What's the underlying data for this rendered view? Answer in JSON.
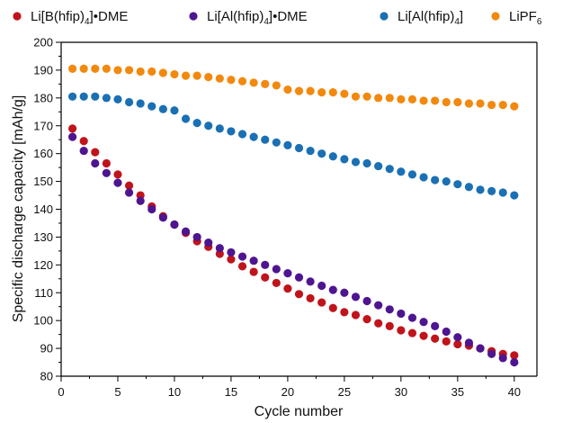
{
  "chart_data": {
    "type": "scatter",
    "title": "",
    "xlabel": "Cycle number",
    "ylabel": "Specific discharge capacity [mAh/g]",
    "xlim": [
      0,
      42
    ],
    "ylim": [
      80,
      200
    ],
    "xticks": [
      0,
      5,
      10,
      15,
      20,
      25,
      30,
      35,
      40
    ],
    "yticks": [
      80,
      90,
      100,
      110,
      120,
      130,
      140,
      150,
      160,
      170,
      180,
      190,
      200
    ],
    "grid": false,
    "legend_position": "top",
    "series": [
      {
        "name": "Li[B(hfip)4]•DME",
        "legend": {
          "pre": "Li[B(hfip)",
          "sub": "4",
          "post": "]•DME"
        },
        "color": "#c0141c",
        "x": [
          1,
          2,
          3,
          4,
          5,
          6,
          7,
          8,
          9,
          10,
          11,
          12,
          13,
          14,
          15,
          16,
          17,
          18,
          19,
          20,
          21,
          22,
          23,
          24,
          25,
          26,
          27,
          28,
          29,
          30,
          31,
          32,
          33,
          34,
          35,
          36,
          37,
          38,
          39,
          40
        ],
        "y": [
          169,
          164.5,
          160.5,
          156.5,
          152.5,
          148.5,
          145,
          141,
          137.5,
          134.5,
          131.5,
          128.5,
          126.5,
          124,
          122,
          119.5,
          117.5,
          115.5,
          113.5,
          111.5,
          109.5,
          108,
          106.5,
          104.5,
          103,
          102,
          100.5,
          99,
          98,
          96.5,
          95.5,
          94.5,
          93.5,
          92.5,
          91.5,
          91,
          90,
          89,
          88,
          87.5
        ]
      },
      {
        "name": "Li[Al(hfip)4]•DME",
        "legend": {
          "pre": "Li[Al(hfip)",
          "sub": "4",
          "post": "]•DME"
        },
        "color": "#4f1590",
        "x": [
          1,
          2,
          3,
          4,
          5,
          6,
          7,
          8,
          9,
          10,
          11,
          12,
          13,
          14,
          15,
          16,
          17,
          18,
          19,
          20,
          21,
          22,
          23,
          24,
          25,
          26,
          27,
          28,
          29,
          30,
          31,
          32,
          33,
          34,
          35,
          36,
          37,
          38,
          39,
          40
        ],
        "y": [
          166,
          161,
          156.5,
          153,
          149.5,
          146,
          143,
          140,
          137,
          134.5,
          132,
          130,
          128,
          126,
          124.5,
          123,
          121.5,
          120,
          118.5,
          117,
          115.5,
          114,
          112.5,
          111,
          110,
          108.5,
          107,
          105.5,
          104,
          102.5,
          101,
          99.5,
          98,
          96,
          94,
          92,
          90,
          88,
          86.5,
          85
        ]
      },
      {
        "name": "Li[Al(hfip)4]",
        "legend": {
          "pre": "Li[Al(hfip)",
          "sub": "4",
          "post": "]"
        },
        "color": "#1a70b3",
        "x": [
          1,
          2,
          3,
          4,
          5,
          6,
          7,
          8,
          9,
          10,
          11,
          12,
          13,
          14,
          15,
          16,
          17,
          18,
          19,
          20,
          21,
          22,
          23,
          24,
          25,
          26,
          27,
          28,
          29,
          30,
          31,
          32,
          33,
          34,
          35,
          36,
          37,
          38,
          39,
          40
        ],
        "y": [
          180.5,
          180.5,
          180.5,
          180,
          179.5,
          178.5,
          178,
          177,
          176,
          175.5,
          172.5,
          171,
          170,
          169,
          168,
          167,
          166,
          165,
          164,
          163,
          162,
          161,
          160,
          159,
          158,
          157,
          156.5,
          155.5,
          154.5,
          153.5,
          152.5,
          151.5,
          150.5,
          150,
          149,
          148,
          147,
          146.5,
          146,
          145
        ]
      },
      {
        "name": "LiPF6",
        "legend": {
          "pre": "LiPF",
          "sub": "6",
          "post": ""
        },
        "color": "#f2890f",
        "x": [
          1,
          2,
          3,
          4,
          5,
          6,
          7,
          8,
          9,
          10,
          11,
          12,
          13,
          14,
          15,
          16,
          17,
          18,
          19,
          20,
          21,
          22,
          23,
          24,
          25,
          26,
          27,
          28,
          29,
          30,
          31,
          32,
          33,
          34,
          35,
          36,
          37,
          38,
          39,
          40
        ],
        "y": [
          190.5,
          190.5,
          190.5,
          190.5,
          190,
          190,
          189.5,
          189.5,
          189,
          188.5,
          188,
          188,
          187.5,
          187,
          186.5,
          186,
          185.5,
          185,
          184.5,
          183,
          182.5,
          182.5,
          182,
          182,
          181.5,
          180.5,
          180.5,
          180,
          180,
          179.5,
          179.5,
          179,
          179,
          178.5,
          178.5,
          178,
          178,
          177.5,
          177.5,
          177
        ]
      }
    ]
  }
}
